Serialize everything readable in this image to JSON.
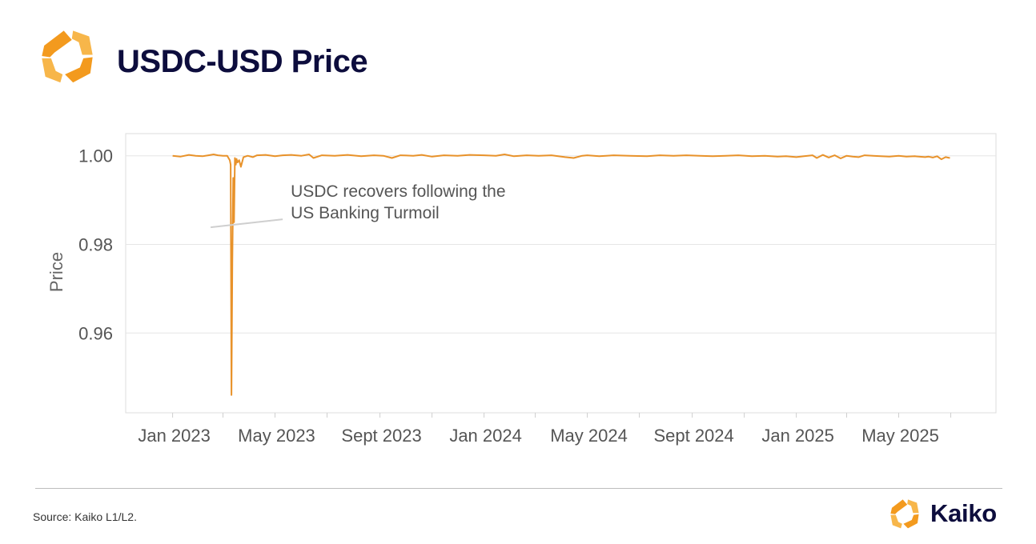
{
  "header": {
    "title": "USDC-USD Price"
  },
  "footer": {
    "source": "Source: Kaiko L1/L2.",
    "brand_name": "Kaiko"
  },
  "colors": {
    "brand_orange": "#f5a020",
    "line": "#e8922a",
    "title_navy": "#0d0d3d",
    "grid": "#e6e6e6"
  },
  "icons": {
    "header_logo": "kaiko-logo-icon",
    "footer_logo": "kaiko-logo-icon"
  },
  "chart_data": {
    "type": "line",
    "title": "USDC-USD Price",
    "xlabel": "",
    "ylabel": "Price",
    "ylim": [
      0.942,
      1.005
    ],
    "xlim": [
      "2022-11-07",
      "2025-08-23"
    ],
    "yticks": [
      0.96,
      0.98,
      1.0
    ],
    "ytick_labels": [
      "0.96",
      "0.98",
      "1.00"
    ],
    "xticks": [
      "2023-01-01",
      "2023-05-01",
      "2023-09-01",
      "2024-01-01",
      "2024-05-01",
      "2024-09-01",
      "2025-01-01",
      "2025-05-01"
    ],
    "xtick_labels": [
      "Jan 2023",
      "May 2023",
      "Sept 2023",
      "Jan 2024",
      "May 2024",
      "Sept 2024",
      "Jan 2025",
      "May 2025"
    ],
    "grid": true,
    "annotations": [
      {
        "text_lines": [
          "USDC recovers following the",
          "US Banking Turmoil"
        ],
        "x": "2023-05-10",
        "y": 0.9835
      }
    ],
    "series": [
      {
        "x": [
          "2023-01-01",
          "2023-01-10",
          "2023-01-20",
          "2023-01-28",
          "2023-02-05",
          "2023-02-12",
          "2023-02-18",
          "2023-02-23",
          "2023-03-01",
          "2023-03-06",
          "2023-03-09",
          "2023-03-10",
          "2023-03-11",
          "2023-03-12",
          "2023-03-13",
          "2023-03-14",
          "2023-03-15",
          "2023-03-16",
          "2023-03-17",
          "2023-03-18",
          "2023-03-20",
          "2023-03-22",
          "2023-03-25",
          "2023-03-30",
          "2023-04-05",
          "2023-04-10",
          "2023-04-20",
          "2023-05-01",
          "2023-05-10",
          "2023-05-20",
          "2023-06-01",
          "2023-06-10",
          "2023-06-15",
          "2023-06-25",
          "2023-07-10",
          "2023-07-25",
          "2023-08-10",
          "2023-08-25",
          "2023-09-05",
          "2023-09-15",
          "2023-09-25",
          "2023-10-10",
          "2023-10-20",
          "2023-11-01",
          "2023-11-15",
          "2023-12-01",
          "2023-12-15",
          "2024-01-01",
          "2024-01-15",
          "2024-01-25",
          "2024-02-05",
          "2024-02-20",
          "2024-03-05",
          "2024-03-20",
          "2024-04-05",
          "2024-04-15",
          "2024-04-25",
          "2024-05-01",
          "2024-05-15",
          "2024-06-01",
          "2024-06-20",
          "2024-07-10",
          "2024-07-25",
          "2024-08-10",
          "2024-08-25",
          "2024-09-10",
          "2024-09-25",
          "2024-10-10",
          "2024-10-25",
          "2024-11-10",
          "2024-11-25",
          "2024-12-10",
          "2024-12-20",
          "2025-01-01",
          "2025-01-10",
          "2025-01-20",
          "2025-01-25",
          "2025-02-01",
          "2025-02-08",
          "2025-02-15",
          "2025-02-22",
          "2025-03-01",
          "2025-03-08",
          "2025-03-15",
          "2025-03-22",
          "2025-04-01",
          "2025-04-10",
          "2025-04-20",
          "2025-05-01",
          "2025-05-10",
          "2025-05-20",
          "2025-06-01",
          "2025-06-05",
          "2025-06-10",
          "2025-06-15",
          "2025-06-20",
          "2025-06-25",
          "2025-06-30"
        ],
        "values": [
          1.0,
          0.9998,
          1.0002,
          1.0,
          0.9999,
          1.0001,
          1.0003,
          1.0001,
          1.0,
          1.0,
          0.999,
          0.998,
          0.946,
          0.976,
          0.995,
          0.985,
          0.9995,
          0.998,
          0.9993,
          0.9985,
          0.999,
          0.9975,
          0.9997,
          1.0,
          0.9997,
          1.0001,
          1.0002,
          0.9999,
          1.0001,
          1.0002,
          1.0,
          1.0003,
          0.9995,
          1.0001,
          1.0,
          1.0002,
          0.9999,
          1.0001,
          1.0,
          0.9995,
          1.0001,
          1.0,
          1.0002,
          0.9998,
          1.0001,
          1.0,
          1.0002,
          1.0001,
          1.0,
          1.0003,
          0.9999,
          1.0001,
          1.0,
          1.0001,
          0.9997,
          0.9995,
          1.0,
          1.0001,
          0.9999,
          1.0001,
          1.0,
          0.9999,
          1.0001,
          1.0,
          1.0001,
          1.0,
          0.9999,
          1.0,
          1.0001,
          0.9999,
          1.0,
          0.9998,
          0.9999,
          0.9997,
          0.9999,
          1.0001,
          0.9995,
          1.0002,
          0.9996,
          1.0001,
          0.9994,
          1.0,
          0.9998,
          0.9997,
          1.0001,
          1.0,
          0.9999,
          0.9998,
          1.0,
          0.9998,
          0.9999,
          0.9997,
          0.9998,
          0.9996,
          0.9999,
          0.9992,
          0.9997,
          0.9995
        ]
      }
    ]
  }
}
